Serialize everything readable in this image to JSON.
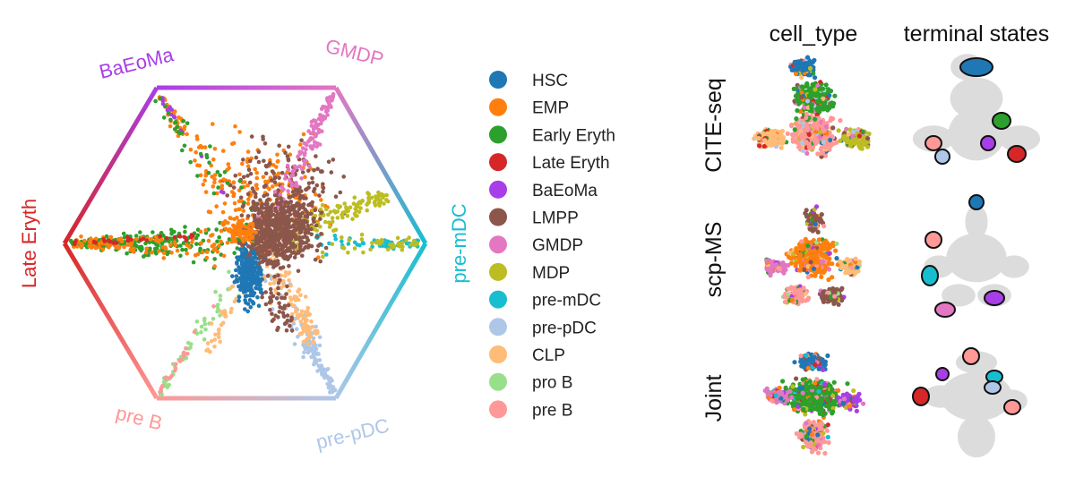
{
  "chart_data": [
    {
      "type": "scatter",
      "subtype": "hexagonal-fate-simplex",
      "vertices": [
        {
          "label": "BaEoMa",
          "color": "#a83ee8"
        },
        {
          "label": "GMDP",
          "color": "#e377c2"
        },
        {
          "label": "pre-mDC",
          "color": "#17becf"
        },
        {
          "label": "pre-pDC",
          "color": "#aec7e8"
        },
        {
          "label": "pre B",
          "color": "#ff9896"
        },
        {
          "label": "Late Eryth",
          "color": "#d62728"
        }
      ],
      "legend": {
        "placement": "right",
        "entries": [
          {
            "label": "HSC",
            "color": "#1f77b4"
          },
          {
            "label": "EMP",
            "color": "#ff7f0e"
          },
          {
            "label": "Early Eryth",
            "color": "#2ca02c"
          },
          {
            "label": "Late Eryth",
            "color": "#d62728"
          },
          {
            "label": "BaEoMa",
            "color": "#a83ee8"
          },
          {
            "label": "LMPP",
            "color": "#8c564b"
          },
          {
            "label": "GMDP",
            "color": "#e377c2"
          },
          {
            "label": "MDP",
            "color": "#bcbd22"
          },
          {
            "label": "pre-mDC",
            "color": "#17becf"
          },
          {
            "label": "pre-pDC",
            "color": "#aec7e8"
          },
          {
            "label": "CLP",
            "color": "#ffbb78"
          },
          {
            "label": "pro B",
            "color": "#98df8a"
          },
          {
            "label": "pre B",
            "color": "#ff9896"
          }
        ]
      },
      "grid": false
    },
    {
      "type": "scatter",
      "subtype": "embedding-panel-grid",
      "columns": [
        "cell_type",
        "terminal states"
      ],
      "rows": [
        "CITE-seq",
        "scp-MS",
        "Joint"
      ],
      "background_color": "#dcdcdc",
      "grid": false
    }
  ]
}
